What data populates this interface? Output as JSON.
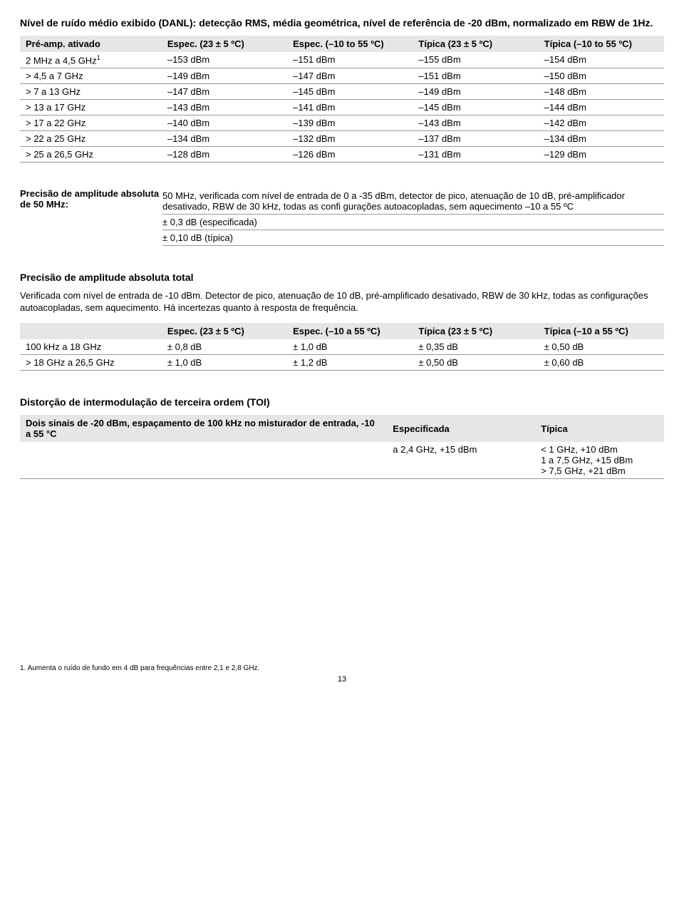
{
  "danl": {
    "title": "Nível de ruído médio exibido (DANL): detecção RMS, média geométrica, nível de referência de -20 dBm, normalizado em RBW de 1Hz.",
    "headers": [
      "Pré-amp. ativado",
      "Espec. (23 ± 5 ºC)",
      "Espec. (–10 to 55 ºC)",
      "Típica (23 ± 5 ºC)",
      "Típica (–10 to 55 ºC)"
    ],
    "rows": [
      {
        "label": "2 MHz a 4,5 GHz",
        "sup": "1",
        "v": [
          "–153 dBm",
          "–151 dBm",
          "–155 dBm",
          "–154 dBm"
        ]
      },
      {
        "label": "> 4,5 a 7 GHz",
        "v": [
          "–149 dBm",
          "–147 dBm",
          "–151 dBm",
          "–150 dBm"
        ]
      },
      {
        "label": "> 7 a 13 GHz",
        "v": [
          "–147 dBm",
          "–145 dBm",
          "–149 dBm",
          "–148 dBm"
        ]
      },
      {
        "label": "> 13 a 17 GHz",
        "v": [
          "–143 dBm",
          "–141 dBm",
          "–145 dBm",
          "–144 dBm"
        ]
      },
      {
        "label": "> 17 a 22 GHz",
        "v": [
          "–140 dBm",
          "–139 dBm",
          "–143 dBm",
          "–142 dBm"
        ]
      },
      {
        "label": "> 22 a 25 GHz",
        "v": [
          "–134 dBm",
          "–132 dBm",
          "–137 dBm",
          "–134 dBm"
        ]
      },
      {
        "label": "> 25 a 26,5 GHz",
        "v": [
          "–128 dBm",
          "–126 dBm",
          "–131 dBm",
          "–129 dBm"
        ]
      }
    ]
  },
  "amp_abs": {
    "label": "Precisão de amplitude absoluta de 50 MHz:",
    "desc": "50 MHz, verificada com nível de entrada de 0 a -35 dBm, detector de pico, atenuação de 10 dB, pré-amplificador desativado, RBW de 30 kHz, todas as confi gurações autoacopladas, sem aquecimento –10 a 55 ºC",
    "spec": "± 0,3 dB (especificada)",
    "typ": "± 0,10 dB (típica)"
  },
  "amp_total": {
    "title": "Precisão de amplitude absoluta total",
    "desc": "Verificada com nível de entrada de -10 dBm. Detector de pico, atenuação de 10 dB, pré-amplificado desativado, RBW de 30 kHz, todas as configurações autoacopladas, sem aquecimento. Há incertezas quanto à resposta de frequência.",
    "headers": [
      "",
      "Espec. (23 ± 5 ºC)",
      "Espec. (–10 a 55 ºC)",
      "Típica (23 ± 5 ºC)",
      "Típica (–10 a 55 ºC)"
    ],
    "rows": [
      {
        "label": "100 kHz a 18 GHz",
        "v": [
          "± 0,8 dB",
          "± 1,0 dB",
          "± 0,35 dB",
          "± 0,50 dB"
        ]
      },
      {
        "label": "> 18 GHz a 26,5 GHz",
        "v": [
          "± 1,0 dB",
          "± 1,2 dB",
          "± 0,50 dB",
          "± 0,60 dB"
        ]
      }
    ]
  },
  "toi": {
    "title": "Distorção de intermodulação de terceira ordem (TOI)",
    "header_label": "Dois sinais de -20 dBm, espaçamento de 100 kHz no misturador de entrada, -10 a 55 °C",
    "header_spec": "Especificada",
    "header_typ": "Típica",
    "spec_val": "a 2,4 GHz, +15 dBm",
    "typ_vals": [
      "< 1 GHz, +10 dBm",
      "1 a 7,5 GHz, +15 dBm",
      "> 7,5 GHz, +21 dBm"
    ]
  },
  "footnote": "1. Aumenta o ruído de fundo em 4 dB para frequências entre 2,1 e 2,8 GHz.",
  "page": "13"
}
